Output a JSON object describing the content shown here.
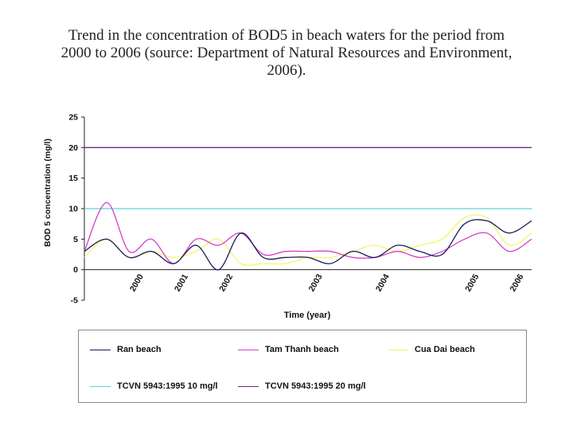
{
  "chart_data": {
    "type": "line",
    "title": "Trend in the concentration of BOD5 in beach waters for the period from 2000 to 2006 (source: Department of Natural Resources and Environment, 2006).",
    "title_lines": [
      "Trend in the concentration of BOD5 in beach waters for the period from",
      "2000 to 2006 (source: Department of Natural Resources and Environment,",
      "2006)."
    ],
    "xlabel": "Time (year)",
    "ylabel": "BOD 5 concentration (mg/l)",
    "ylim": [
      -5,
      25
    ],
    "yticks": [
      -5,
      0,
      5,
      10,
      15,
      20,
      25
    ],
    "grid": false,
    "legend_position": "bottom",
    "num_points": 21,
    "x_tick_labels": [
      {
        "index": 2.5,
        "label": "2000"
      },
      {
        "index": 4.5,
        "label": "2001"
      },
      {
        "index": 6.5,
        "label": "2002"
      },
      {
        "index": 10.5,
        "label": "2003"
      },
      {
        "index": 13.5,
        "label": "2004"
      },
      {
        "index": 17.5,
        "label": "2005"
      },
      {
        "index": 19.5,
        "label": "2006"
      }
    ],
    "series": [
      {
        "name": "Ran beach",
        "color": "#1b1b5e",
        "values": [
          3,
          5,
          2,
          3,
          1,
          4,
          0,
          6,
          2,
          2,
          2,
          1,
          3,
          2,
          4,
          3,
          2.5,
          7.5,
          8,
          6,
          8
        ]
      },
      {
        "name": "Tam Thanh beach",
        "color": "#d43fc8",
        "values": [
          3,
          11,
          3,
          5,
          1,
          5,
          4,
          6,
          2.5,
          3,
          3,
          3,
          2,
          2,
          3,
          2,
          3,
          5,
          6,
          3,
          5
        ]
      },
      {
        "name": "Cua Dai beach",
        "color": "#f4f46a",
        "values": [
          2,
          5,
          2,
          3,
          2,
          3,
          5,
          1,
          1,
          1,
          2,
          2,
          3,
          4,
          3,
          4,
          5,
          8.5,
          8.5,
          4,
          6
        ]
      },
      {
        "name": "TCVN 5943:1995 10 mg/l",
        "color": "#5fd4d4",
        "values": [
          10,
          10,
          10,
          10,
          10,
          10,
          10,
          10,
          10,
          10,
          10,
          10,
          10,
          10,
          10,
          10,
          10,
          10,
          10,
          10,
          10
        ]
      },
      {
        "name": "TCVN 5943:1995 20 mg/l",
        "color": "#6a2a8a",
        "values": [
          20,
          20,
          20,
          20,
          20,
          20,
          20,
          20,
          20,
          20,
          20,
          20,
          20,
          20,
          20,
          20,
          20,
          20,
          20,
          20,
          20
        ]
      }
    ]
  }
}
